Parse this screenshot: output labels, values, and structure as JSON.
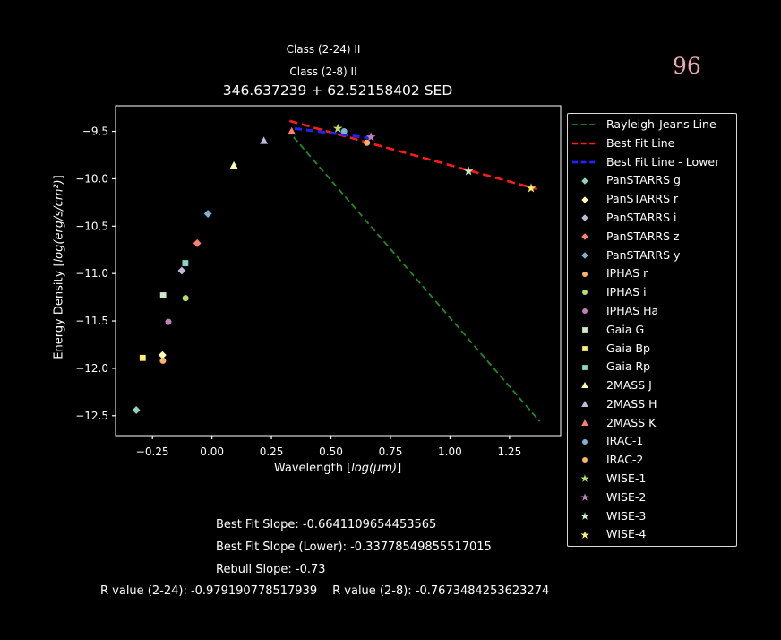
{
  "header": {
    "class_line1": "Class (2-24) II",
    "class_line2": "Class (2-8) II",
    "title": "346.637239 + 62.52158402 SED",
    "counter": "96"
  },
  "colors": {
    "background": "#000000",
    "text": "#ffffff",
    "counter": "#eda6b2",
    "axis": "#ffffff",
    "legend_border": "#d9d9d9"
  },
  "chart_data": {
    "type": "scatter",
    "title": "346.637239 + 62.52158402 SED",
    "xlabel": "Wavelength [log(μm)]",
    "xlabel_prefix": "Wavelength [",
    "xlabel_math": "log(μm)",
    "xlabel_suffix": "]",
    "ylabel": "Energy Density [log(erg/s/cm²)]",
    "ylabel_prefix": "Energy Density [",
    "ylabel_math": "log(erg/s/cm²)",
    "ylabel_suffix": "]",
    "xlim": [
      -0.405,
      1.465
    ],
    "ylim": [
      -12.71,
      -9.23
    ],
    "xticks": [
      -0.25,
      0.0,
      0.25,
      0.5,
      0.75,
      1.0,
      1.25
    ],
    "xtick_labels": [
      "−0.25",
      "0.00",
      "0.25",
      "0.50",
      "0.75",
      "1.00",
      "1.25"
    ],
    "yticks": [
      -9.5,
      -10.0,
      -10.5,
      -11.0,
      -11.5,
      -12.0,
      -12.5
    ],
    "ytick_labels": [
      "−9.5",
      "−10.0",
      "−10.5",
      "−11.0",
      "−11.5",
      "−12.0",
      "−12.5"
    ],
    "grid": false,
    "legend_position": "outside-right",
    "lines": [
      {
        "label": "Rayleigh-Jeans Line",
        "color": "#1f8b1f",
        "x": [
          0.343,
          1.377
        ],
        "y": [
          -9.56,
          -12.56
        ],
        "dash": [
          7,
          4
        ],
        "width": 1.8
      },
      {
        "label": "Best Fit Line",
        "color": "#ff1a1a",
        "x": [
          0.326,
          1.366
        ],
        "y": [
          -9.39,
          -10.11
        ],
        "dash": [
          9,
          5
        ],
        "width": 2.6
      },
      {
        "label": "Best Fit Line - Lower",
        "color": "#2222ff",
        "x": [
          0.348,
          0.663
        ],
        "y": [
          -9.47,
          -9.57
        ],
        "dash": [
          8,
          5
        ],
        "width": 3.0
      }
    ],
    "points": [
      {
        "label": "PanSTARRS g",
        "marker": "diamond",
        "color": "#8dd3c7",
        "x": -0.318,
        "y": -12.44
      },
      {
        "label": "PanSTARRS r",
        "marker": "diamond",
        "color": "#ffffb3",
        "x": -0.208,
        "y": -11.86
      },
      {
        "label": "PanSTARRS i",
        "marker": "diamond",
        "color": "#bebada",
        "x": -0.127,
        "y": -10.97
      },
      {
        "label": "PanSTARRS z",
        "marker": "diamond",
        "color": "#fb8072",
        "x": -0.062,
        "y": -10.68
      },
      {
        "label": "PanSTARRS y",
        "marker": "diamond",
        "color": "#80b1d3",
        "x": -0.017,
        "y": -10.37
      },
      {
        "label": "IPHAS r",
        "marker": "circle",
        "color": "#fdb462",
        "x": -0.206,
        "y": -11.92
      },
      {
        "label": "IPHAS i",
        "marker": "circle",
        "color": "#b3de69",
        "x": -0.111,
        "y": -11.26
      },
      {
        "label": "IPHAS Ha",
        "marker": "circle",
        "color": "#bc80bd",
        "x": -0.183,
        "y": -11.51
      },
      {
        "label": "Gaia G",
        "marker": "square",
        "color": "#ccebc5",
        "x": -0.205,
        "y": -11.23
      },
      {
        "label": "Gaia Bp",
        "marker": "square",
        "color": "#ffed6f",
        "x": -0.291,
        "y": -11.89
      },
      {
        "label": "Gaia Rp",
        "marker": "square",
        "color": "#8dd3c7",
        "x": -0.112,
        "y": -10.89
      },
      {
        "label": "2MASS J",
        "marker": "triangle",
        "color": "#ffffb3",
        "x": 0.092,
        "y": -9.86
      },
      {
        "label": "2MASS H",
        "marker": "triangle",
        "color": "#bebada",
        "x": 0.218,
        "y": -9.6
      },
      {
        "label": "2MASS K",
        "marker": "triangle",
        "color": "#fb8072",
        "x": 0.335,
        "y": -9.5
      },
      {
        "label": "IRAC-1",
        "marker": "circle",
        "color": "#80b1d3",
        "x": 0.555,
        "y": -9.5
      },
      {
        "label": "IRAC-2",
        "marker": "circle",
        "color": "#fdb462",
        "x": 0.651,
        "y": -9.62
      },
      {
        "label": "WISE-1",
        "marker": "star",
        "color": "#b3de69",
        "x": 0.529,
        "y": -9.47
      },
      {
        "label": "WISE-2",
        "marker": "star",
        "color": "#bc80bd",
        "x": 0.668,
        "y": -9.56
      },
      {
        "label": "WISE-3",
        "marker": "star",
        "color": "#ccebc5",
        "x": 1.078,
        "y": -9.92
      },
      {
        "label": "WISE-4",
        "marker": "star",
        "color": "#ffed6f",
        "x": 1.341,
        "y": -10.1
      }
    ]
  },
  "stats": {
    "best_fit_slope": "Best Fit Slope: -0.6641109654453565",
    "best_fit_slope_lower": "Best Fit Slope (Lower): -0.33778549855517015",
    "rebull_slope": "Rebull Slope: -0.73",
    "r_value_2_24": "R value (2-24): -0.979190778517939",
    "r_value_2_8": "R value (2-8): -0.7673484253623274"
  }
}
